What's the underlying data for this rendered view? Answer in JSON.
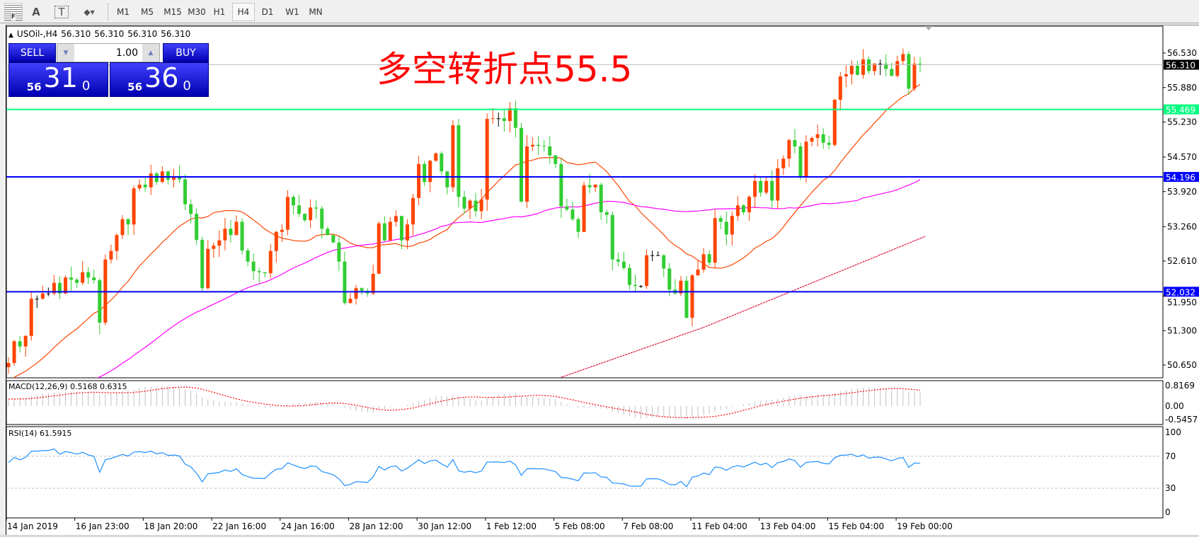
{
  "toolbar": {
    "tools": [
      {
        "name": "grid-fibo-icon",
        "label": "F"
      },
      {
        "name": "text-tool",
        "label": "A"
      },
      {
        "name": "text-label-tool",
        "label": "T"
      },
      {
        "name": "shapes-tool",
        "label": "◆▾"
      }
    ],
    "timeframes": [
      "M1",
      "M5",
      "M15",
      "M30",
      "H1",
      "H4",
      "D1",
      "W1",
      "MN"
    ],
    "active_timeframe": "H4"
  },
  "header": {
    "symbol": "USOil-,H4",
    "values": [
      "56.310",
      "56.310",
      "56.310",
      "56.310"
    ]
  },
  "trade_panel": {
    "sell_label": "SELL",
    "buy_label": "BUY",
    "lot": "1.00",
    "sell": {
      "prefix": "56",
      "main": "31",
      "sup": "0"
    },
    "buy": {
      "prefix": "56",
      "main": "36",
      "sup": "0"
    }
  },
  "annotation": "多空转折点55.5",
  "chart_data": {
    "type": "candlestick",
    "symbol": "USOil-",
    "timeframe": "H4",
    "close": [
      50.69,
      51.1,
      51.0,
      51.2,
      51.9,
      51.9,
      52.0,
      52.0,
      52.2,
      52.0,
      52.3,
      52.26,
      52.2,
      52.4,
      52.3,
      52.25,
      51.45,
      52.64,
      52.8,
      53.1,
      53.4,
      53.3,
      53.98,
      54.05,
      54.0,
      54.26,
      54.1,
      54.3,
      54.14,
      54.2,
      54.15,
      53.68,
      53.5,
      53.01,
      52.1,
      52.84,
      52.9,
      53.0,
      53.22,
      53.1,
      53.35,
      52.81,
      52.6,
      52.42,
      52.4,
      52.38,
      52.8,
      53.16,
      53.2,
      53.82,
      53.66,
      53.5,
      53.38,
      53.62,
      53.6,
      53.22,
      53.1,
      52.96,
      52.6,
      51.82,
      51.9,
      52.1,
      52.05,
      52.0,
      52.37,
      53.32,
      53.0,
      53.35,
      53.46,
      53.0,
      53.3,
      53.8,
      54.44,
      54.1,
      54.5,
      54.64,
      54.3,
      54.0,
      55.17,
      53.82,
      53.6,
      53.75,
      53.55,
      53.77,
      55.29,
      55.3,
      55.3,
      55.25,
      55.49,
      55.12,
      53.73,
      54.77,
      54.8,
      54.78,
      54.77,
      54.6,
      54.44,
      53.64,
      53.58,
      53.4,
      53.16,
      54.04,
      54.0,
      54.05,
      53.53,
      53.48,
      52.64,
      52.6,
      52.48,
      52.16,
      52.14,
      52.14,
      52.72,
      52.72,
      52.72,
      52.47,
      52.07,
      52.0,
      52.24,
      51.54,
      52.34,
      52.45,
      52.74,
      52.58,
      53.42,
      53.35,
      53.11,
      53.46,
      53.66,
      53.53,
      53.82,
      54.12,
      53.9,
      54.12,
      53.75,
      54.36,
      54.54,
      54.89,
      54.77,
      54.21,
      54.86,
      54.93,
      55.0,
      54.84,
      54.8,
      55.65,
      56.09,
      56.13,
      56.29,
      56.12,
      56.41,
      56.19,
      56.33,
      56.33,
      56.23,
      56.1,
      56.38,
      56.51,
      55.86,
      56.33,
      56.31
    ],
    "ma200_visible": [
      {
        "bar": 97,
        "value": 50.42
      },
      {
        "bar": 122,
        "value": 51.36
      },
      {
        "bar": 161,
        "value": 53.08
      }
    ],
    "y_ticks": [
      "56.530",
      "55.880",
      "55.230",
      "54.570",
      "53.920",
      "53.260",
      "52.610",
      "51.950",
      "51.300",
      "50.650"
    ],
    "x_ticks": [
      "14 Jan 2019",
      "16 Jan 23:00",
      "18 Jan 20:00",
      "22 Jan 16:00",
      "24 Jan 16:00",
      "28 Jan 12:00",
      "30 Jan 12:00",
      "1 Feb 12:00",
      "5 Feb 08:00",
      "7 Feb 08:00",
      "11 Feb 04:00",
      "13 Feb 04:00",
      "15 Feb 04:00",
      "19 Feb 00:00"
    ],
    "levels": [
      {
        "value": 56.31,
        "label": "56.310",
        "color": "#c0c0c0",
        "label_bg": "#000000"
      },
      {
        "value": 55.469,
        "label": "55.469",
        "color": "#00ff7f",
        "label_bg": "#00ff7f"
      },
      {
        "value": 54.196,
        "label": "54.196",
        "color": "#0000ff",
        "label_bg": "#0000ff"
      },
      {
        "value": 52.032,
        "label": "52.032",
        "color": "#0000ff",
        "label_bg": "#0000ff"
      }
    ],
    "colors": {
      "bull": "#ff4500",
      "bear": "#32cd32",
      "doji": "#000000",
      "ma_fast": "#ff4500",
      "ma_slow": "#ff00ff",
      "ma200": "#dc143c",
      "rsi": "#1e90ff",
      "macd_hist": "#c0c0c0",
      "macd_signal": "#ff0000"
    },
    "macd": {
      "label": "MACD(12,26,9) 0.5168 0.6315",
      "ticks": [
        "0.8169",
        "0.00",
        "-0.5457"
      ],
      "range": [
        -0.5457,
        0.8169
      ]
    },
    "rsi": {
      "label": "RSI(14) 61.5915",
      "ticks": [
        "100",
        "70",
        "30",
        "0"
      ],
      "levels": [
        70,
        30
      ]
    }
  }
}
